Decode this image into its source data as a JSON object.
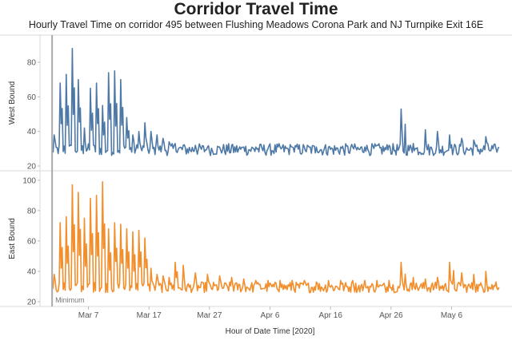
{
  "chart_data": {
    "type": "line",
    "title": "Corridor Travel Time",
    "subtitle": "Hourly Travel Time on corridor 495 between Flushing Meadows Corona Park and NJ Turnpike Exit 16E",
    "xlabel": "Hour of Date Time [2020]",
    "x_ticks": [
      "Mar 7",
      "Mar 17",
      "Mar 27",
      "Apr 6",
      "Apr 16",
      "Apr 26",
      "May 6"
    ],
    "x_range": [
      "2020-02-28",
      "2020-05-14"
    ],
    "reference_line": {
      "label": "Minimum",
      "date": "2020-03-01"
    },
    "grid": false,
    "series": [
      {
        "name": "West Bound",
        "color": "#4e79a7",
        "ylim": [
          20,
          92
        ],
        "yticks": [
          20,
          40,
          60,
          80
        ],
        "points": [
          [
            "2020-03-01",
            38
          ],
          [
            "2020-03-02",
            68
          ],
          [
            "2020-03-03",
            73
          ],
          [
            "2020-03-04",
            88
          ],
          [
            "2020-03-05",
            70
          ],
          [
            "2020-03-06",
            42
          ],
          [
            "2020-03-07",
            65
          ],
          [
            "2020-03-08",
            68
          ],
          [
            "2020-03-09",
            55
          ],
          [
            "2020-03-10",
            74
          ],
          [
            "2020-03-11",
            75
          ],
          [
            "2020-03-12",
            70
          ],
          [
            "2020-03-13",
            48
          ],
          [
            "2020-03-14",
            38
          ],
          [
            "2020-03-15",
            40
          ],
          [
            "2020-03-16",
            45
          ],
          [
            "2020-03-17",
            40
          ],
          [
            "2020-03-18",
            38
          ],
          [
            "2020-03-19",
            36
          ],
          [
            "2020-03-20",
            34
          ],
          [
            "2020-03-21",
            33
          ],
          [
            "2020-03-22",
            32
          ],
          [
            "2020-03-24",
            32
          ],
          [
            "2020-03-26",
            31
          ],
          [
            "2020-03-28",
            31
          ],
          [
            "2020-03-30",
            32
          ],
          [
            "2020-04-01",
            31
          ],
          [
            "2020-04-03",
            31
          ],
          [
            "2020-04-05",
            30
          ],
          [
            "2020-04-07",
            31
          ],
          [
            "2020-04-09",
            31
          ],
          [
            "2020-04-11",
            31
          ],
          [
            "2020-04-13",
            31
          ],
          [
            "2020-04-15",
            31
          ],
          [
            "2020-04-17",
            31
          ],
          [
            "2020-04-19",
            31
          ],
          [
            "2020-04-21",
            31
          ],
          [
            "2020-04-23",
            32
          ],
          [
            "2020-04-25",
            32
          ],
          [
            "2020-04-27",
            53
          ],
          [
            "2020-04-29",
            33
          ],
          [
            "2020-05-01",
            41
          ],
          [
            "2020-05-03",
            40
          ],
          [
            "2020-05-05",
            38
          ],
          [
            "2020-05-07",
            36
          ],
          [
            "2020-05-09",
            35
          ],
          [
            "2020-05-11",
            37
          ],
          [
            "2020-05-13",
            30
          ]
        ]
      },
      {
        "name": "East Bound",
        "color": "#f28e2b",
        "ylim": [
          20,
          102
        ],
        "yticks": [
          20,
          40,
          60,
          80,
          100
        ],
        "points": [
          [
            "2020-03-01",
            38
          ],
          [
            "2020-03-02",
            72
          ],
          [
            "2020-03-03",
            76
          ],
          [
            "2020-03-04",
            97
          ],
          [
            "2020-03-05",
            92
          ],
          [
            "2020-03-06",
            75
          ],
          [
            "2020-03-07",
            88
          ],
          [
            "2020-03-08",
            90
          ],
          [
            "2020-03-09",
            99
          ],
          [
            "2020-03-10",
            68
          ],
          [
            "2020-03-11",
            72
          ],
          [
            "2020-03-12",
            71
          ],
          [
            "2020-03-13",
            68
          ],
          [
            "2020-03-14",
            66
          ],
          [
            "2020-03-15",
            67
          ],
          [
            "2020-03-16",
            62
          ],
          [
            "2020-03-17",
            42
          ],
          [
            "2020-03-18",
            38
          ],
          [
            "2020-03-19",
            37
          ],
          [
            "2020-03-20",
            36
          ],
          [
            "2020-03-21",
            46
          ],
          [
            "2020-03-22",
            44
          ],
          [
            "2020-03-24",
            39
          ],
          [
            "2020-03-26",
            38
          ],
          [
            "2020-03-28",
            37
          ],
          [
            "2020-03-30",
            36
          ],
          [
            "2020-04-01",
            35
          ],
          [
            "2020-04-03",
            34
          ],
          [
            "2020-04-05",
            34
          ],
          [
            "2020-04-07",
            34
          ],
          [
            "2020-04-09",
            34
          ],
          [
            "2020-04-11",
            34
          ],
          [
            "2020-04-13",
            33
          ],
          [
            "2020-04-15",
            34
          ],
          [
            "2020-04-17",
            34
          ],
          [
            "2020-04-19",
            34
          ],
          [
            "2020-04-21",
            34
          ],
          [
            "2020-04-23",
            34
          ],
          [
            "2020-04-25",
            34
          ],
          [
            "2020-04-27",
            46
          ],
          [
            "2020-04-29",
            36
          ],
          [
            "2020-05-01",
            35
          ],
          [
            "2020-05-03",
            36
          ],
          [
            "2020-05-05",
            46
          ],
          [
            "2020-05-07",
            39
          ],
          [
            "2020-05-09",
            38
          ],
          [
            "2020-05-11",
            40
          ],
          [
            "2020-05-13",
            33
          ]
        ]
      }
    ]
  }
}
